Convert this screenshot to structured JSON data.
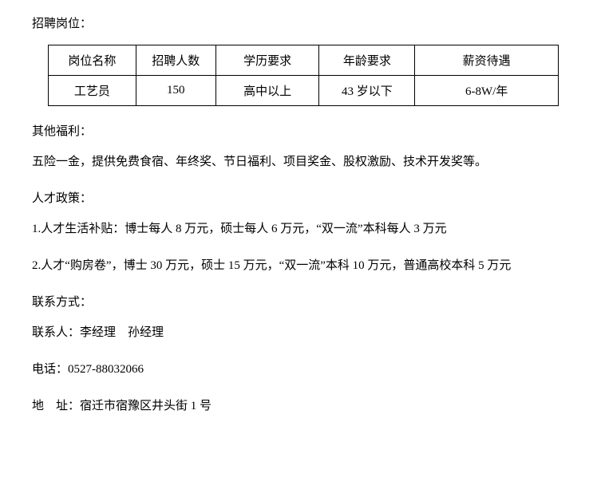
{
  "headings": {
    "recruit": "招聘岗位：",
    "benefits": "其他福利：",
    "policy": "人才政策：",
    "contact": "联系方式："
  },
  "table": {
    "columns": [
      "岗位名称",
      "招聘人数",
      "学历要求",
      "年龄要求",
      "薪资待遇"
    ],
    "rows": [
      [
        "工艺员",
        "150",
        "高中以上",
        "43 岁以下",
        "6-8W/年"
      ]
    ]
  },
  "benefits_text": "五险一金，提供免费食宿、年终奖、节日福利、项目奖金、股权激励、技术开发奖等。",
  "policy_items": [
    "1.人才生活补贴：博士每人 8 万元，硕士每人 6 万元，“双一流”本科每人 3 万元",
    "2.人才“购房卷”，博士 30 万元，硕士 15 万元，“双一流”本科 10 万元，普通高校本科 5 万元"
  ],
  "contact": {
    "person_line": "联系人：李经理　孙经理",
    "phone_line": "电话：0527-88032066",
    "address_line": "地　址：宿迁市宿豫区井头街 1 号"
  }
}
